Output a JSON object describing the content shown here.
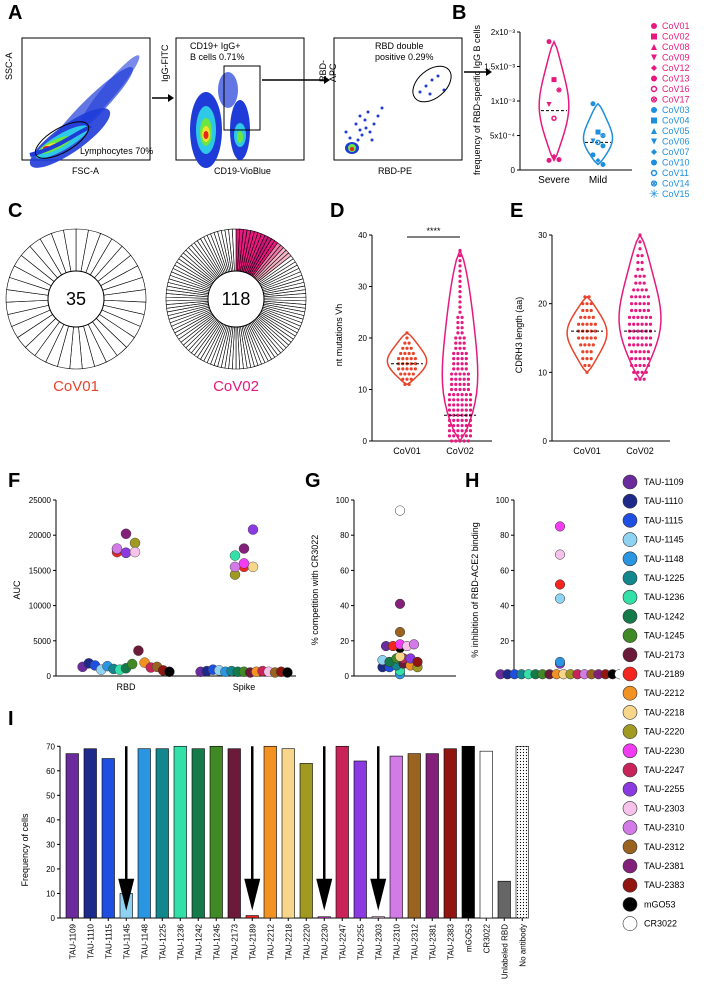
{
  "panel_letters": {
    "a": "A",
    "b": "B",
    "c": "C",
    "d": "D",
    "e": "E",
    "f": "F",
    "g": "G",
    "h": "H",
    "i": "I"
  },
  "panelA": {
    "plot1": {
      "ylabel": "SSC-A",
      "xlabel": "FSC-A",
      "gate": "Lymphocytes 70%"
    },
    "plot2": {
      "ylabel": "IgG-FITC",
      "xlabel": "CD19-VioBlue",
      "gate_line1": "CD19+ IgG+",
      "gate_line2": "B cells 0.71%"
    },
    "plot3": {
      "ylabel": "RBD-APC",
      "xlabel": "RBD-PE",
      "gate_line1": "RBD double",
      "gate_line2": "positive 0.29%"
    }
  },
  "panelB": {
    "ylabel": "frequency of RBD-specific IgG B cells",
    "yticks": [
      "0",
      "5x10⁻⁴",
      "1x10⁻³",
      "1.5x10⁻³",
      "2x10⁻³"
    ],
    "groups": [
      "Severe",
      "Mild"
    ],
    "legend": [
      {
        "label": "CoV01",
        "shape": "circle",
        "color": "#e6197e"
      },
      {
        "label": "CoV02",
        "shape": "square",
        "color": "#e6197e"
      },
      {
        "label": "CoV08",
        "shape": "triangle",
        "color": "#e6197e"
      },
      {
        "label": "CoV09",
        "shape": "triangle-down",
        "color": "#e6197e"
      },
      {
        "label": "CoV12",
        "shape": "diamond",
        "color": "#e6197e"
      },
      {
        "label": "CoV13",
        "shape": "circle",
        "color": "#e6197e"
      },
      {
        "label": "CoV16",
        "shape": "ring",
        "color": "#e6197e"
      },
      {
        "label": "CoV17",
        "shape": "ring-x",
        "color": "#e6197e"
      },
      {
        "label": "CoV03",
        "shape": "circle",
        "color": "#1e8fdc"
      },
      {
        "label": "CoV04",
        "shape": "square",
        "color": "#1e8fdc"
      },
      {
        "label": "CoV05",
        "shape": "triangle",
        "color": "#1e8fdc"
      },
      {
        "label": "CoV06",
        "shape": "triangle-down",
        "color": "#1e8fdc"
      },
      {
        "label": "CoV07",
        "shape": "diamond",
        "color": "#1e8fdc"
      },
      {
        "label": "CoV10",
        "shape": "circle",
        "color": "#1e8fdc"
      },
      {
        "label": "CoV11",
        "shape": "ring",
        "color": "#1e8fdc"
      },
      {
        "label": "CoV14",
        "shape": "ring-x",
        "color": "#1e8fdc"
      },
      {
        "label": "CoV15",
        "shape": "star",
        "color": "#1e8fdc"
      }
    ]
  },
  "panelC": {
    "pie1": {
      "total": "35",
      "name": "CoV01",
      "color": "#e8442b",
      "segments": 35
    },
    "pie2": {
      "total": "118",
      "name": "CoV02",
      "color": "#e6197e",
      "segments": 118
    }
  },
  "panelD": {
    "ylabel": "nt mutations Vh",
    "groups": [
      "CoV01",
      "CoV02"
    ],
    "sig": "****",
    "yticks": [
      "0",
      "10",
      "20",
      "30",
      "40"
    ]
  },
  "panelE": {
    "ylabel": "CDRH3 length (aa)",
    "groups": [
      "CoV01",
      "CoV02"
    ],
    "yticks": [
      "0",
      "10",
      "20",
      "30"
    ]
  },
  "panelF": {
    "ylabel": "AUC",
    "groups": [
      "RBD",
      "Spike"
    ],
    "yticks": [
      "0",
      "5000",
      "10000",
      "15000",
      "20000",
      "25000"
    ]
  },
  "panelG": {
    "ylabel": "% competition with CR3022",
    "yticks": [
      "0",
      "20",
      "40",
      "60",
      "80",
      "100"
    ]
  },
  "panelH": {
    "ylabel": "% inhibition of RBD-ACE2 binding",
    "yticks": [
      "0",
      "20",
      "40",
      "60",
      "80",
      "100"
    ]
  },
  "panelI": {
    "ylabel": "Frequency of cells",
    "yticks": [
      "0",
      "10",
      "20",
      "30",
      "40",
      "50",
      "60",
      "70"
    ]
  },
  "antibodies": [
    {
      "name": "TAU-1109",
      "color": "#6a2c9c"
    },
    {
      "name": "TAU-1110",
      "color": "#1d2a8a"
    },
    {
      "name": "TAU-1115",
      "color": "#1e4fe0"
    },
    {
      "name": "TAU-1145",
      "color": "#8fd2f2"
    },
    {
      "name": "TAU-1148",
      "color": "#2a95e0"
    },
    {
      "name": "TAU-1225",
      "color": "#12878c"
    },
    {
      "name": "TAU-1236",
      "color": "#33e0a8"
    },
    {
      "name": "TAU-1242",
      "color": "#157a4a"
    },
    {
      "name": "TAU-1245",
      "color": "#3f8a26"
    },
    {
      "name": "TAU-2173",
      "color": "#6b1a3a"
    },
    {
      "name": "TAU-2189",
      "color": "#f2261e"
    },
    {
      "name": "TAU-2212",
      "color": "#f29222"
    },
    {
      "name": "TAU-2218",
      "color": "#f7d68c"
    },
    {
      "name": "TAU-2220",
      "color": "#a09a22"
    },
    {
      "name": "TAU-2230",
      "color": "#f23cf2"
    },
    {
      "name": "TAU-2247",
      "color": "#c8245a"
    },
    {
      "name": "TAU-2255",
      "color": "#8a3ae0"
    },
    {
      "name": "TAU-2303",
      "color": "#f7c2ea"
    },
    {
      "name": "TAU-2310",
      "color": "#d27ae6"
    },
    {
      "name": "TAU-2312",
      "color": "#9a6420"
    },
    {
      "name": "TAU-2381",
      "color": "#82207a"
    },
    {
      "name": "TAU-2383",
      "color": "#921510"
    },
    {
      "name": "mGO53",
      "color": "#000000"
    },
    {
      "name": "CR3022",
      "color": "#ffffff"
    }
  ],
  "chart_data": [
    {
      "type": "scatter",
      "panel": "B",
      "ylabel": "frequency of RBD-specific IgG B cells",
      "ylim": [
        0,
        0.002
      ],
      "categories": [
        "Severe",
        "Mild"
      ],
      "series": [
        {
          "name": "Severe",
          "values": [
            0.00186,
            0.00131,
            0.00116,
            0.00095,
            0.00075,
            0.00015,
            0.00014,
            0.0002
          ],
          "median": 0.00086
        },
        {
          "name": "Mild",
          "values": [
            0.00096,
            0.00055,
            0.0005,
            0.00042,
            0.0004,
            0.00035,
            0.00022,
            0.00014,
            8e-05
          ],
          "median": 0.0004
        }
      ]
    },
    {
      "type": "scatter",
      "panel": "D",
      "ylabel": "nt mutations Vh",
      "ylim": [
        0,
        40
      ],
      "categories": [
        "CoV01",
        "CoV02"
      ],
      "series": [
        {
          "name": "CoV01",
          "range": [
            11,
            21
          ],
          "median": 15
        },
        {
          "name": "CoV02",
          "range": [
            0,
            37
          ],
          "median": 5
        }
      ]
    },
    {
      "type": "scatter",
      "panel": "E",
      "ylabel": "CDRH3 length (aa)",
      "ylim": [
        0,
        30
      ],
      "categories": [
        "CoV01",
        "CoV02"
      ],
      "series": [
        {
          "name": "CoV01",
          "range": [
            10,
            21
          ],
          "median": 16
        },
        {
          "name": "CoV02",
          "range": [
            9,
            30
          ],
          "median": 16
        }
      ]
    },
    {
      "type": "scatter",
      "panel": "F",
      "ylabel": "AUC",
      "ylim": [
        0,
        25000
      ],
      "categories": [
        "RBD",
        "Spike"
      ],
      "RBD": [
        1300,
        1800,
        1500,
        900,
        1400,
        1000,
        900,
        1100,
        1700,
        3600,
        17600,
        1900,
        17500,
        18900,
        18000,
        1200,
        17500,
        17600,
        18100,
        1300,
        20200,
        800,
        600
      ],
      "Spike": [
        600,
        700,
        900,
        800,
        600,
        700,
        17100,
        600,
        600,
        500,
        15500,
        600,
        15500,
        14400,
        16000,
        700,
        20800,
        600,
        15500,
        500,
        18100,
        600,
        500
      ]
    },
    {
      "type": "scatter",
      "panel": "G",
      "ylabel": "% competition with CR3022",
      "ylim": [
        0,
        100
      ],
      "values": [
        17,
        5,
        5,
        9,
        1,
        6,
        3,
        8,
        10,
        7,
        17,
        6,
        11,
        5,
        18,
        10,
        10,
        17,
        18,
        25,
        41,
        8,
        16,
        94
      ]
    },
    {
      "type": "scatter",
      "panel": "H",
      "ylabel": "% inhibition of RBD-ACE2 binding",
      "ylim": [
        0,
        100
      ],
      "values": [
        1,
        1,
        1,
        44,
        8,
        1,
        1,
        1,
        1,
        1,
        52,
        1,
        1,
        1,
        85,
        1,
        7,
        69,
        1,
        1,
        1,
        1,
        1,
        1
      ]
    },
    {
      "type": "bar",
      "panel": "I",
      "ylabel": "Frequency of cells",
      "ylim": [
        0,
        75
      ],
      "categories": [
        "TAU-1109",
        "TAU-1110",
        "TAU-1115",
        "TAU-1145",
        "TAU-1148",
        "TAU-1225",
        "TAU-1236",
        "TAU-1242",
        "TAU-1245",
        "TAU-2173",
        "TAU-2189",
        "TAU-2212",
        "TAU-2218",
        "TAU-2220",
        "TAU-2230",
        "TAU-2247",
        "TAU-2255",
        "TAU-2303",
        "TAU-2310",
        "TAU-2312",
        "TAU-2381",
        "TAU-2383",
        "mGO53",
        "CR3022",
        "Unlabeled RBD",
        "No antibody"
      ],
      "values": [
        67,
        69,
        65,
        10,
        69,
        69,
        70,
        69,
        70,
        69,
        1,
        70,
        69,
        63,
        0.5,
        70,
        64,
        0.5,
        66,
        67,
        67,
        69,
        70,
        68,
        15,
        70
      ],
      "arrows": [
        "TAU-1145",
        "TAU-2189",
        "TAU-2230",
        "TAU-2303"
      ]
    }
  ]
}
